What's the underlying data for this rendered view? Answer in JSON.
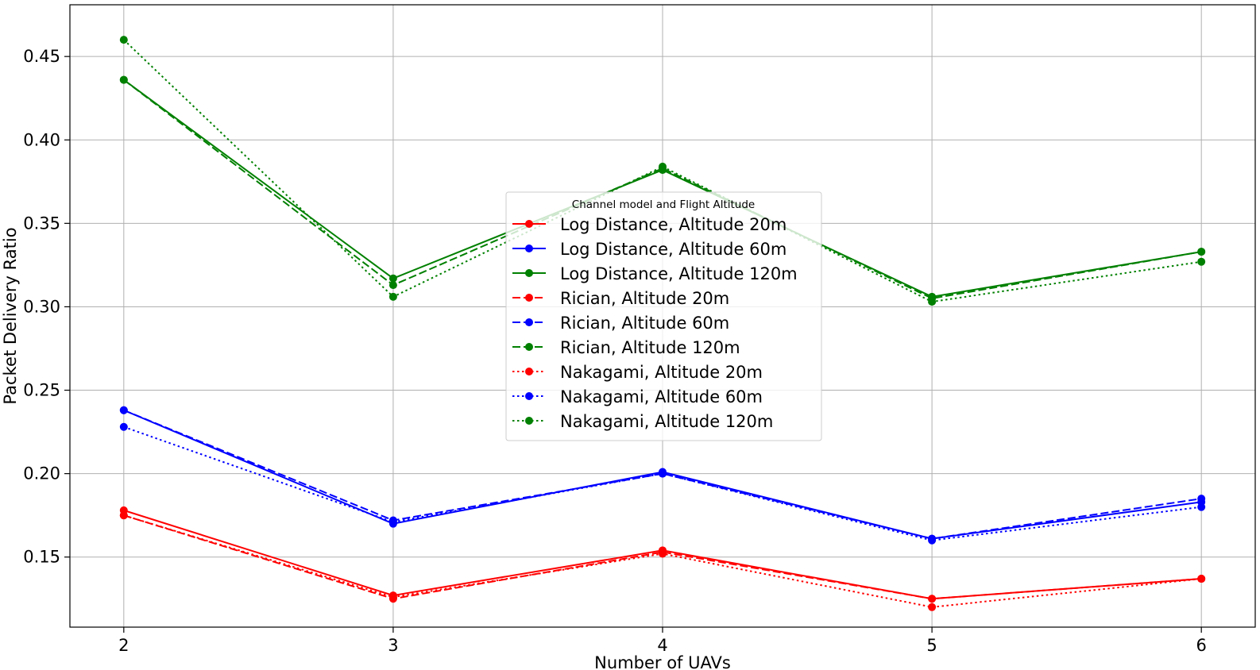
{
  "chart_data": {
    "type": "line",
    "xlabel": "Number of UAVs",
    "ylabel": "Packet Delivery Ratio",
    "x": [
      2,
      3,
      4,
      5,
      6
    ],
    "xlim": [
      1.8,
      6.2
    ],
    "ylim": [
      0.108,
      0.481
    ],
    "xticks": [
      "2",
      "3",
      "4",
      "5",
      "6"
    ],
    "yticks": [
      "0.15",
      "0.20",
      "0.25",
      "0.30",
      "0.35",
      "0.40",
      "0.45"
    ],
    "grid": true,
    "legend": {
      "title": "Channel model and Flight Altitude",
      "placement": "center"
    },
    "series": [
      {
        "name": "Log Distance, Altitude 20m",
        "color": "#ff0000",
        "linestyle": "solid",
        "values": [
          0.178,
          0.127,
          0.154,
          0.125,
          0.137
        ]
      },
      {
        "name": "Log Distance, Altitude 60m",
        "color": "#0000ff",
        "linestyle": "solid",
        "values": [
          0.238,
          0.17,
          0.201,
          0.161,
          0.183
        ]
      },
      {
        "name": "Log Distance, Altitude 120m",
        "color": "#008000",
        "linestyle": "solid",
        "values": [
          0.436,
          0.317,
          0.382,
          0.306,
          0.333
        ]
      },
      {
        "name": "Rician, Altitude 20m",
        "color": "#ff0000",
        "linestyle": "dashed",
        "values": [
          0.175,
          0.125,
          0.153,
          0.125,
          0.137
        ]
      },
      {
        "name": "Rician, Altitude 60m",
        "color": "#0000ff",
        "linestyle": "dashed",
        "values": [
          0.238,
          0.172,
          0.2,
          0.161,
          0.185
        ]
      },
      {
        "name": "Rician, Altitude 120m",
        "color": "#008000",
        "linestyle": "dashed",
        "values": [
          0.436,
          0.313,
          0.383,
          0.305,
          0.333
        ]
      },
      {
        "name": "Nakagami, Altitude 20m",
        "color": "#ff0000",
        "linestyle": "dotted",
        "values": [
          0.175,
          0.126,
          0.152,
          0.12,
          0.137
        ]
      },
      {
        "name": "Nakagami, Altitude 60m",
        "color": "#0000ff",
        "linestyle": "dotted",
        "values": [
          0.228,
          0.171,
          0.2,
          0.16,
          0.18
        ]
      },
      {
        "name": "Nakagami, Altitude 120m",
        "color": "#008000",
        "linestyle": "dotted",
        "values": [
          0.46,
          0.306,
          0.384,
          0.303,
          0.327
        ]
      }
    ]
  }
}
